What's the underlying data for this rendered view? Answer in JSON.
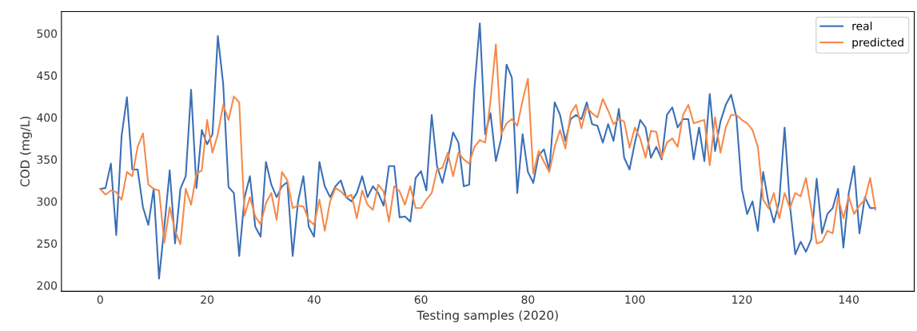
{
  "chart_data": {
    "type": "line",
    "xlabel": "Testing samples (2020)",
    "ylabel": "COD (mg/L)",
    "x": [
      0,
      1,
      2,
      3,
      4,
      5,
      6,
      7,
      8,
      9,
      10,
      11,
      12,
      13,
      14,
      15,
      16,
      17,
      18,
      19,
      20,
      21,
      22,
      23,
      24,
      25,
      26,
      27,
      28,
      29,
      30,
      31,
      32,
      33,
      34,
      35,
      36,
      37,
      38,
      39,
      40,
      41,
      42,
      43,
      44,
      45,
      46,
      47,
      48,
      49,
      50,
      51,
      52,
      53,
      54,
      55,
      56,
      57,
      58,
      59,
      60,
      61,
      62,
      63,
      64,
      65,
      66,
      67,
      68,
      69,
      70,
      71,
      72,
      73,
      74,
      75,
      76,
      77,
      78,
      79,
      80,
      81,
      82,
      83,
      84,
      85,
      86,
      87,
      88,
      89,
      90,
      91,
      92,
      93,
      94,
      95,
      96,
      97,
      98,
      99,
      100,
      101,
      102,
      103,
      104,
      105,
      106,
      107,
      108,
      109,
      110,
      111,
      112,
      113,
      114,
      115,
      116,
      117,
      118,
      119,
      120,
      121,
      122,
      123,
      124,
      125,
      126,
      127,
      128,
      129,
      130,
      131,
      132,
      133,
      134,
      135,
      136,
      137,
      138,
      139,
      140,
      141,
      142,
      143,
      144,
      145
    ],
    "series": [
      {
        "name": "real",
        "color": "#3a6fb8",
        "values": [
          315,
          316,
          345,
          260,
          378,
          424,
          338,
          338,
          293,
          272,
          315,
          208,
          270,
          337,
          250,
          315,
          330,
          433,
          316,
          385,
          368,
          380,
          497,
          440,
          317,
          310,
          235,
          305,
          330,
          270,
          258,
          347,
          320,
          305,
          318,
          323,
          235,
          300,
          330,
          270,
          258,
          347,
          318,
          305,
          318,
          325,
          305,
          300,
          310,
          330,
          305,
          318,
          310,
          295,
          342,
          342,
          281,
          282,
          276,
          328,
          336,
          313,
          403,
          342,
          322,
          350,
          382,
          370,
          318,
          320,
          435,
          512,
          380,
          405,
          348,
          375,
          463,
          447,
          310,
          380,
          335,
          322,
          355,
          362,
          337,
          418,
          403,
          372,
          398,
          403,
          398,
          418,
          392,
          390,
          370,
          392,
          372,
          410,
          352,
          338,
          370,
          397,
          388,
          352,
          365,
          350,
          403,
          412,
          388,
          398,
          398,
          350,
          388,
          348,
          428,
          360,
          395,
          415,
          427,
          400,
          315,
          285,
          300,
          265,
          335,
          298,
          275,
          300,
          388,
          295,
          237,
          252,
          240,
          255,
          327,
          262,
          285,
          292,
          315,
          245,
          310,
          342,
          262,
          305,
          292,
          292
        ]
      },
      {
        "name": "predicted",
        "color": "#f58a4b",
        "values": [
          315,
          308,
          313,
          311,
          302,
          335,
          330,
          365,
          381,
          320,
          315,
          313,
          251,
          293,
          265,
          249,
          315,
          296,
          333,
          337,
          397,
          358,
          380,
          415,
          397,
          425,
          418,
          283,
          305,
          282,
          273,
          298,
          310,
          278,
          335,
          325,
          292,
          295,
          294,
          278,
          272,
          302,
          265,
          300,
          316,
          312,
          305,
          308,
          280,
          313,
          296,
          290,
          320,
          312,
          276,
          318,
          312,
          296,
          318,
          292,
          292,
          302,
          310,
          338,
          340,
          358,
          330,
          358,
          350,
          345,
          365,
          373,
          370,
          420,
          487,
          380,
          393,
          398,
          390,
          420,
          446,
          333,
          360,
          347,
          335,
          365,
          385,
          363,
          405,
          415,
          387,
          412,
          405,
          400,
          422,
          408,
          392,
          398,
          395,
          364,
          388,
          375,
          352,
          384,
          383,
          352,
          370,
          375,
          365,
          403,
          415,
          393,
          395,
          397,
          343,
          400,
          358,
          388,
          403,
          403,
          397,
          393,
          385,
          365,
          302,
          292,
          310,
          280,
          310,
          292,
          310,
          306,
          328,
          290,
          250,
          252,
          265,
          262,
          305,
          280,
          306,
          285,
          295,
          302,
          328,
          290
        ]
      }
    ],
    "xlim": [
      -7.25,
      152.25
    ],
    "ylim": [
      193,
      526
    ],
    "xticks": [
      0,
      20,
      40,
      60,
      80,
      100,
      120,
      140
    ],
    "yticks": [
      200,
      250,
      300,
      350,
      400,
      450,
      500
    ],
    "grid": false,
    "legend": "top right"
  }
}
